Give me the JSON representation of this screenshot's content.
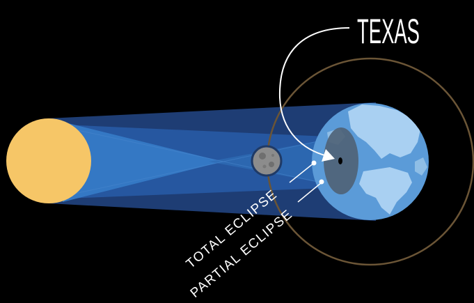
{
  "diagram": {
    "location_label": "TEXAS",
    "labels": {
      "total": "TOTAL ECLIPSE",
      "partial": "PARTIAL ECLIPSE"
    },
    "colors": {
      "background": "#000000",
      "sun": "#f6c667",
      "light_dark": "#1e3d74",
      "light_mid": "#2b5ca4",
      "light_light": "#3a7cc8",
      "moon": "#8c8c8c",
      "earth_ocean": "#5b9bd8",
      "earth_land": "#a9d0f2",
      "umbra": "#000000",
      "penumbra": "#4f6275",
      "orbit": "#6b5536",
      "text": "#ffffff"
    },
    "icons": {
      "sun": "sun-icon",
      "moon": "moon-icon",
      "earth": "earth-icon",
      "arrow": "curved-arrow-icon"
    }
  }
}
